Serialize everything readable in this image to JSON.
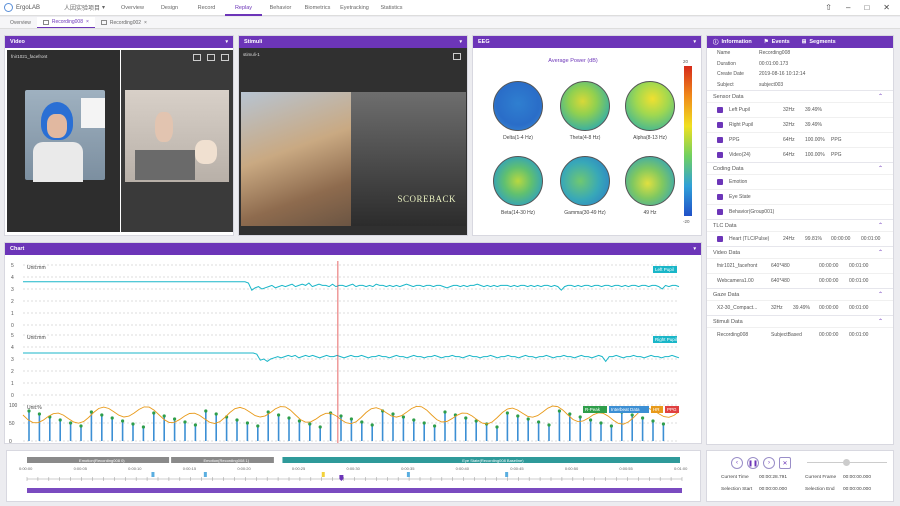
{
  "app": {
    "name": "ErgoLAB",
    "project": "人因实验项目"
  },
  "nav": [
    {
      "label": "Overview"
    },
    {
      "label": "Design"
    },
    {
      "label": "Record"
    },
    {
      "label": "Replay"
    },
    {
      "label": "Behavior"
    },
    {
      "label": "Biometrics"
    },
    {
      "label": "Eyetracking"
    },
    {
      "label": "Statistics"
    }
  ],
  "nav_active": "Replay",
  "tabs": [
    {
      "label": "Overview"
    },
    {
      "label": "Recording008"
    },
    {
      "label": "Recording002"
    }
  ],
  "video": {
    "title": "Video",
    "label": "fnir1021_facefront"
  },
  "stimuli": {
    "title": "Stimuli",
    "label": "stimuli-1",
    "watermark": "SCOREBACK"
  },
  "eeg": {
    "title": "EEG",
    "chart_title": "Average Power (dB)",
    "bands": [
      "Delta(1-4 Hz)",
      "Theta(4-8 Hz)",
      "Alpha(8-13 Hz)",
      "Beta(14-30 Hz)",
      "Gamma(30-49 Hz)",
      "49 Hz"
    ],
    "scale_max": "20",
    "scale_min": "-20"
  },
  "info": {
    "tabs": [
      {
        "label": "Information"
      },
      {
        "label": "Events"
      },
      {
        "label": "Segments"
      }
    ],
    "fields": [
      {
        "k": "Name",
        "v": "Recording008"
      },
      {
        "k": "Duration",
        "v": "00:01:00.173"
      },
      {
        "k": "Create Date",
        "v": "2019-08-16 10:12:14"
      },
      {
        "k": "Subject",
        "v": "subject003"
      }
    ],
    "sensor_title": "Sensor Data",
    "sensor_rows": [
      [
        "Left Pupil",
        "32Hz",
        "39.49%",
        "",
        ""
      ],
      [
        "Right Pupil",
        "32Hz",
        "39.49%",
        "",
        ""
      ],
      [
        "PPG",
        "64Hz",
        "100.00%",
        "PPG",
        ""
      ],
      [
        "Video(24)",
        "64Hz",
        "100.00%",
        "PPG",
        ""
      ]
    ],
    "coding_title": "Coding Data",
    "coding_rows": [
      "Emotion",
      "Eye State",
      "Behavior(Group001)"
    ],
    "tlc_title": "TLC Data",
    "tlc_rows": [
      [
        "Heart (TLC/Pulse)",
        "24Hz",
        "99.81%",
        "00:00:00",
        "00:01:00"
      ]
    ],
    "video_title": "Video Data",
    "video_rows": [
      [
        "fnir1021_facefront",
        "640*480",
        "",
        "00:00:00",
        "00:01:00"
      ],
      [
        "Webcamera1.00",
        "640*480",
        "",
        "00:00:00",
        "00:01:00"
      ]
    ],
    "gaze_title": "Gaze Data",
    "gaze_rows": [
      [
        "X2-30_Compact...",
        "32Hz",
        "39.49%",
        "00:00:00",
        "00:01:00"
      ]
    ],
    "stim_title": "Stimuli Data",
    "stim_rows": [
      [
        "Recording008",
        "SubjectBased",
        "",
        "00:00:00",
        "00:01:00"
      ]
    ]
  },
  "chart": {
    "title": "Chart",
    "unit_label_1": "Unit:mm",
    "unit_label_2": "Unit:mm",
    "unit_label_3": "Unit:%",
    "series": [
      {
        "name": "Left Pupil",
        "color": "#19b6c8"
      },
      {
        "name": "Right Pupil",
        "color": "#19b6c8"
      },
      {
        "name": "R-Peak",
        "color": "#2e9e4a"
      },
      {
        "name": "Interbeat Data",
        "color": "#3c8fd4"
      },
      {
        "name": "HR",
        "color": "#e89a1a"
      },
      {
        "name": "PPG",
        "color": "#e04040"
      }
    ],
    "y_ticks_1": [
      "5",
      "4",
      "3",
      "2",
      "1",
      "0"
    ],
    "y_ticks_2": [
      "5",
      "4",
      "3",
      "2",
      "1",
      "0"
    ],
    "y_ticks_3": [
      "100",
      "50",
      "0"
    ],
    "cursor_fraction": 0.48,
    "left_pupil_values": [
      3.6,
      3.6,
      3.6,
      3.6,
      3.6,
      3.6,
      3.6,
      3.6,
      3.6,
      3.6,
      3.6,
      3.6,
      3.6,
      3.6,
      3.6,
      3.6,
      3.6,
      3.6,
      3.6,
      3.6,
      3.6,
      3.6,
      3.6,
      3.6,
      3.6,
      3.6,
      3.6,
      3.6,
      3.6,
      3.6,
      3.6,
      3.6,
      3.6,
      3.6,
      3.6,
      3.6,
      3.6,
      3.6,
      3.6,
      3.6,
      3.6,
      3.6,
      3.6,
      3.6,
      3.6,
      3.6,
      3.6,
      3.6,
      3.6,
      3.6,
      3.6,
      3.6,
      3.6,
      3.6,
      3.6,
      3.6,
      3.6,
      3.6,
      3.6,
      3.6,
      3.6,
      3.6,
      3.6,
      3.6,
      3.6,
      3.6,
      3.6,
      3.5,
      2.9,
      3.1,
      3.2,
      3.0,
      3.1,
      3.2,
      3.3,
      3.1,
      3.2,
      3.3,
      3.2,
      3.3,
      3.4,
      3.2,
      3.3,
      3.4,
      3.3,
      3.5,
      3.2,
      3.3,
      3.4,
      3.3,
      3.3,
      3.2,
      3.4,
      3.2,
      3.3,
      3.3,
      3.2,
      3.3,
      3.4,
      3.2,
      3.3,
      3.3,
      3.2,
      3.3,
      3.2,
      3.4,
      3.3,
      3.3,
      3.2,
      3.3,
      3.2,
      3.3,
      3.2,
      3.3,
      3.4,
      3.3,
      3.2,
      3.3,
      3.3,
      3.2,
      3.3,
      3.3,
      3.2,
      3.3,
      3.3,
      3.2,
      3.1,
      3.2,
      3.3,
      3.3,
      3.2,
      3.3,
      3.2,
      3.3,
      3.3,
      3.4,
      3.3,
      3.2,
      3.3,
      3.2,
      3.3,
      3.2,
      3.3,
      3.3,
      3.3,
      3.2,
      3.3,
      3.2,
      3.3,
      3.3,
      3.2,
      3.3,
      3.2,
      3.3,
      3.2,
      3.3,
      3.3,
      3.2,
      3.3,
      3.2,
      2.9,
      3.2,
      3.3,
      3.3,
      3.2,
      3.3,
      3.2,
      3.3,
      3.3,
      3.2,
      3.3,
      3.3,
      3.2,
      3.3,
      3.3,
      3.2,
      3.3,
      3.3,
      3.2,
      3.3,
      3.2,
      3.3,
      3.3,
      3.2,
      3.3,
      3.3,
      3.2,
      3.3,
      3.3,
      3.2,
      3.0,
      3.3,
      3.2,
      3.3,
      3.3,
      3.2
    ],
    "right_pupil_values": [
      3.5,
      3.5,
      3.5,
      3.5,
      3.5,
      3.5,
      3.5,
      3.5,
      3.5,
      3.5,
      3.5,
      3.5,
      3.5,
      3.5,
      3.5,
      3.5,
      3.5,
      3.5,
      3.5,
      3.5,
      3.5,
      3.5,
      3.5,
      3.5,
      3.5,
      3.5,
      3.5,
      3.5,
      3.5,
      3.5,
      3.5,
      3.5,
      3.5,
      3.5,
      3.5,
      3.5,
      3.5,
      3.5,
      3.5,
      3.5,
      3.5,
      3.5,
      3.5,
      3.5,
      3.5,
      3.5,
      3.5,
      3.5,
      3.5,
      3.5,
      3.5,
      3.5,
      3.5,
      3.5,
      3.5,
      3.5,
      3.5,
      3.5,
      3.5,
      3.5,
      3.5,
      3.5,
      3.5,
      3.5,
      3.5,
      3.5,
      3.5,
      3.4,
      2.9,
      3.0,
      2.8,
      3.0,
      3.1,
      3.2,
      3.1,
      3.2,
      3.3,
      3.2,
      3.3,
      3.1,
      3.2,
      3.3,
      3.2,
      3.3,
      3.2,
      3.1,
      3.2,
      3.3,
      3.2,
      3.2,
      3.3,
      3.2,
      3.1,
      3.2,
      3.3,
      3.2,
      3.2,
      3.3,
      3.2,
      3.1,
      3.2,
      3.2,
      3.3,
      3.2,
      3.2,
      3.1,
      3.2,
      3.3,
      3.2,
      3.2,
      3.1,
      3.2,
      3.3,
      3.2,
      3.2,
      3.1,
      3.2,
      3.2,
      3.3,
      3.2,
      3.1,
      3.2,
      3.2,
      3.3,
      3.2,
      3.2,
      3.1,
      3.2,
      3.3,
      3.2,
      3.2,
      3.1,
      3.2,
      3.2,
      3.3,
      3.2,
      3.1,
      3.2,
      3.2,
      3.3,
      3.2,
      3.2,
      3.1,
      3.2,
      3.3,
      3.2,
      3.2,
      3.1,
      3.2,
      3.2,
      3.3,
      3.2,
      3.1,
      3.2,
      3.2,
      3.3,
      3.2,
      3.2,
      3.1,
      3.2,
      3.3,
      3.2,
      3.2,
      3.1,
      3.2,
      3.3,
      3.2,
      2.8,
      3.2,
      3.2,
      3.3,
      3.2,
      3.1,
      3.2,
      3.2,
      3.3,
      3.2,
      3.2,
      3.1,
      3.2,
      3.3,
      3.2,
      3.2,
      3.1,
      3.2,
      3.2,
      3.3,
      3.2,
      3.1
    ]
  },
  "timeline": {
    "seg1": "Emotion(Recording008 0)",
    "seg2": "Emotion(Recording008 1)",
    "seg3": "Eye State(Recording008 Baseline)",
    "ticks": [
      "0:00:00",
      "0:00:05",
      "0:00:10",
      "0:00:15",
      "0:00:20",
      "0:00:25",
      "0:00:30",
      "0:00:35",
      "0:00:40",
      "0:00:45",
      "0:00:50",
      "0:00:55",
      "0:01:00"
    ],
    "playhead_fraction": 0.48
  },
  "playback": {
    "current_time_label": "Current Time",
    "current_time": "00:00:28.791",
    "current_frame_label": "Current Frame",
    "current_frame": "00:00:00.000",
    "sel_start_label": "Selection Start",
    "sel_start": "00:00:00.000",
    "sel_end_label": "Selection End",
    "sel_end": "00:00:00.000"
  }
}
